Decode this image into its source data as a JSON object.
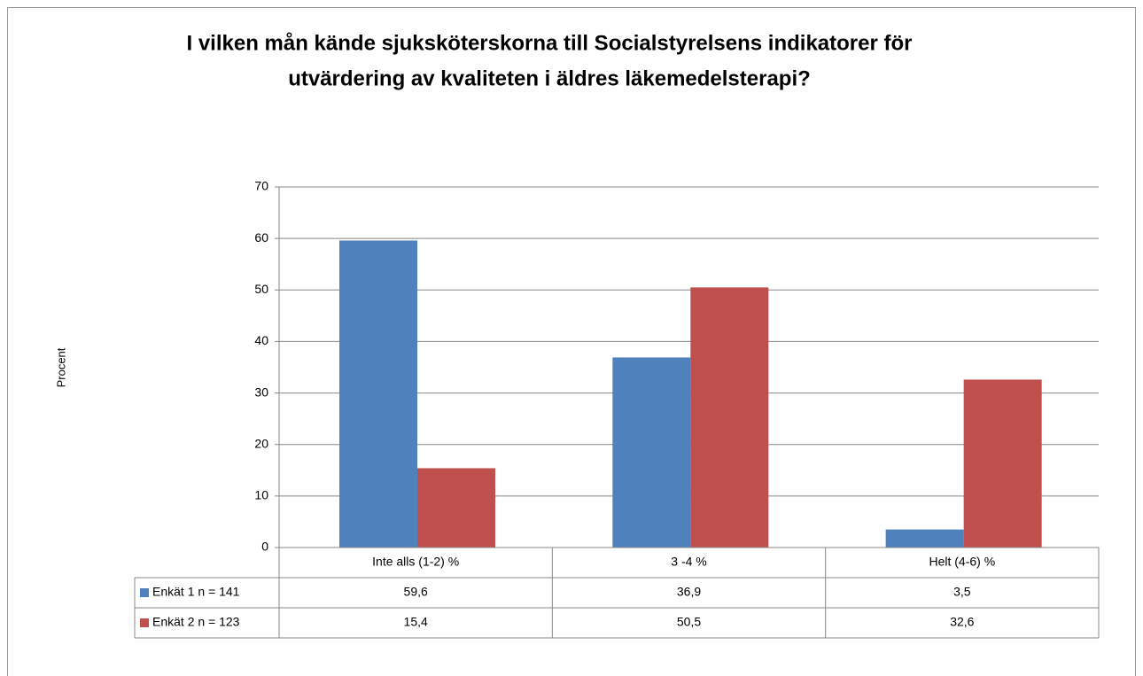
{
  "chart_data": {
    "type": "bar",
    "title": [
      "I vilken mån kände sjuksköterskorna till Socialstyrelsens indikatorer för",
      "utvärdering av kvaliteten i äldres läkemedelsterapi?"
    ],
    "y_label": "Procent",
    "categories": [
      "Inte alls (1-2) %",
      "3 -4 %",
      "Helt (4-6) %"
    ],
    "series": [
      {
        "name": "Enkät 1  n = 141",
        "color": "#4f81bd",
        "values": [
          59.6,
          36.9,
          3.5
        ],
        "value_labels": [
          "59,6",
          "36,9",
          "3,5"
        ]
      },
      {
        "name": "Enkät 2  n = 123",
        "color": "#c0504d",
        "values": [
          15.4,
          50.5,
          32.6
        ],
        "value_labels": [
          "15,4",
          "50,5",
          "32,6"
        ]
      }
    ],
    "ylim": [
      0,
      70
    ],
    "yticks": [
      0,
      10,
      20,
      30,
      40,
      50,
      60,
      70
    ],
    "grid": true
  }
}
